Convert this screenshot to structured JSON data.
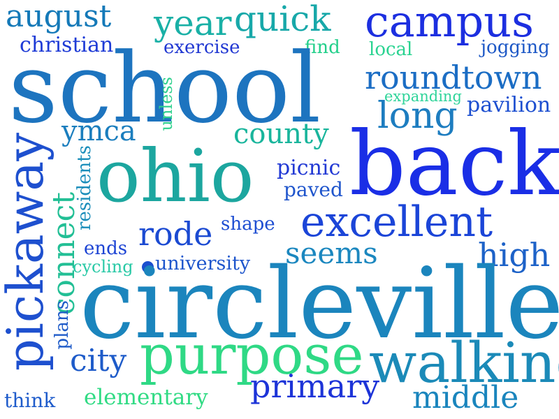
{
  "words": {
    "august": {
      "text": "august",
      "color": "#1479b8"
    },
    "year": {
      "text": "year",
      "color": "#19b0a6"
    },
    "quick": {
      "text": "quick",
      "color": "#17a8a9"
    },
    "campus": {
      "text": "campus",
      "color": "#1c2fe0"
    },
    "christian": {
      "text": "christian",
      "color": "#1e3bd6"
    },
    "exercise": {
      "text": "exercise",
      "color": "#2037d2"
    },
    "find": {
      "text": "find",
      "color": "#22cf8a"
    },
    "local": {
      "text": "local",
      "color": "#2ad391"
    },
    "jogging": {
      "text": "jogging",
      "color": "#1d58c6"
    },
    "school": {
      "text": "school",
      "color": "#1d74bf"
    },
    "roundtown": {
      "text": "roundtown",
      "color": "#1b6dc4"
    },
    "expanding": {
      "text": "expanding",
      "color": "#2fd49a"
    },
    "pavilion": {
      "text": "pavilion",
      "color": "#1d4fd0"
    },
    "unless": {
      "text": "unless",
      "color": "#2ed08d"
    },
    "long": {
      "text": "long",
      "color": "#1d7dc0"
    },
    "ymca": {
      "text": "ymca",
      "color": "#1b7ebe"
    },
    "county": {
      "text": "county",
      "color": "#19b59c"
    },
    "back": {
      "text": "back",
      "color": "#1a2ee6"
    },
    "pickaway": {
      "text": "pickaway",
      "color": "#1e50cf"
    },
    "residents": {
      "text": "residents",
      "color": "#1a8dba"
    },
    "ohio": {
      "text": "ohio",
      "color": "#1ca69f"
    },
    "picnic": {
      "text": "picnic",
      "color": "#2239d4"
    },
    "paved": {
      "text": "paved",
      "color": "#1f55cc"
    },
    "connect": {
      "text": "connect",
      "color": "#22bf95"
    },
    "excellent": {
      "text": "excellent",
      "color": "#1b45d8"
    },
    "shape": {
      "text": "shape",
      "color": "#1e4ed2"
    },
    "rode": {
      "text": "rode",
      "color": "#1b4ad2"
    },
    "ends": {
      "text": "ends",
      "color": "#1d44d4"
    },
    "seems": {
      "text": "seems",
      "color": "#1b87bf"
    },
    "high": {
      "text": "high",
      "color": "#1d62c8"
    },
    "cycling": {
      "text": "cycling",
      "color": "#29c9a6"
    },
    "university": {
      "text": "university",
      "color": "#1d55cc"
    },
    "plans": {
      "text": "plans",
      "color": "#1f5bc8"
    },
    "circleville": {
      "text": "circleville",
      "color": "#1b85bd"
    },
    "city": {
      "text": "city",
      "color": "#1e5bc9"
    },
    "purpose": {
      "text": "purpose",
      "color": "#2fd985"
    },
    "walking": {
      "text": "walking",
      "color": "#1b8ab8"
    },
    "think": {
      "text": "think",
      "color": "#1f5ccb"
    },
    "elementary": {
      "text": "elementary",
      "color": "#31db84"
    },
    "primary": {
      "text": "primary",
      "color": "#1d34d8"
    },
    "middle": {
      "text": "middle",
      "color": "#1a85bd"
    }
  },
  "dot_color": "#1b4fcf"
}
